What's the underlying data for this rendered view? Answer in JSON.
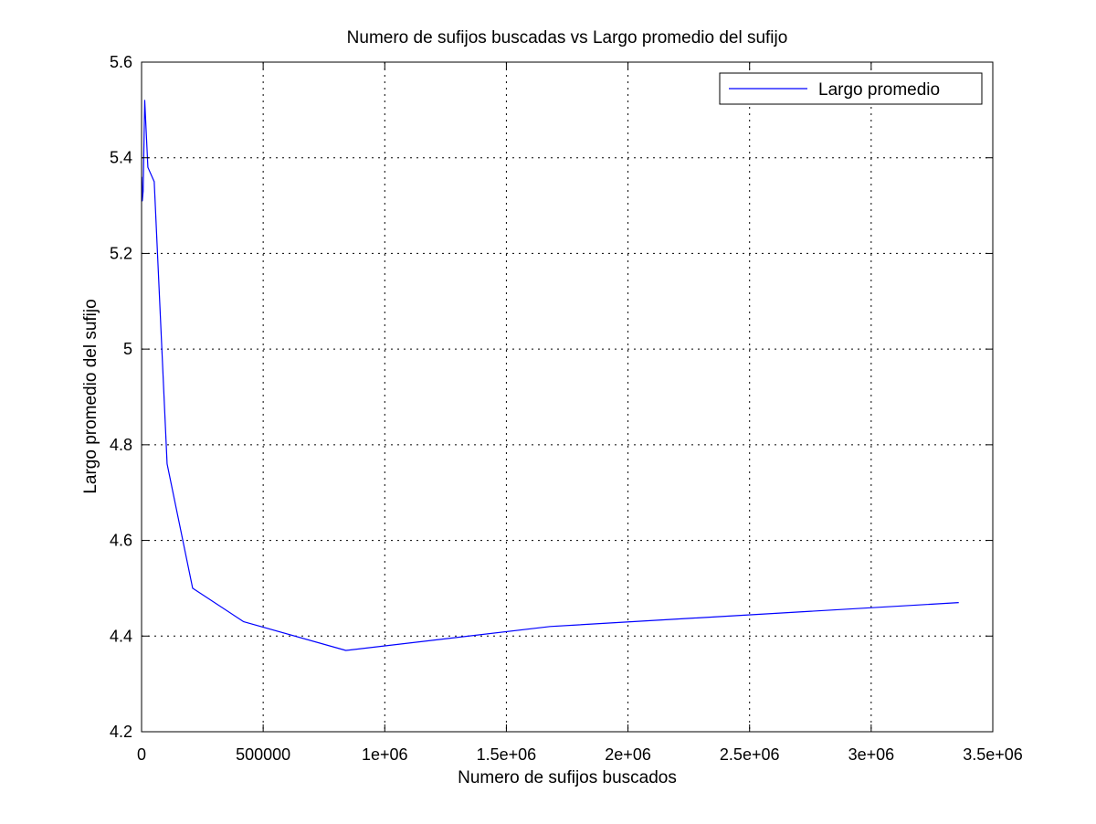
{
  "chart_data": {
    "type": "line",
    "title": "Numero de sufijos buscadas vs Largo promedio del sufijo",
    "xlabel": "Numero de sufijos buscados",
    "ylabel": "Largo promedio del sufijo",
    "xlim": [
      0,
      3500000
    ],
    "ylim": [
      4.2,
      5.6
    ],
    "x_ticks": [
      0,
      500000,
      1000000,
      1500000,
      2000000,
      2500000,
      3000000,
      3500000
    ],
    "x_tick_labels": [
      "0",
      "500000",
      "1e+06",
      "1.5e+06",
      "2e+06",
      "2.5e+06",
      "3e+06",
      "3.5e+06"
    ],
    "y_ticks": [
      4.2,
      4.4,
      4.6,
      4.8,
      5.0,
      5.2,
      5.4,
      5.6
    ],
    "y_tick_labels": [
      "4.2",
      "4.4",
      "4.6",
      "4.8",
      "5",
      "5.2",
      "5.4",
      "5.6"
    ],
    "grid": true,
    "legend": "top-right",
    "series": [
      {
        "name": "Largo promedio",
        "color": "#0000ff",
        "x": [
          1000,
          3000,
          6500,
          13000,
          26000,
          52000,
          105000,
          210000,
          420000,
          840000,
          1680000,
          3360000
        ],
        "y": [
          5.36,
          5.31,
          5.33,
          5.52,
          5.38,
          5.35,
          4.76,
          4.5,
          4.43,
          4.37,
          4.42,
          4.47
        ]
      }
    ]
  }
}
